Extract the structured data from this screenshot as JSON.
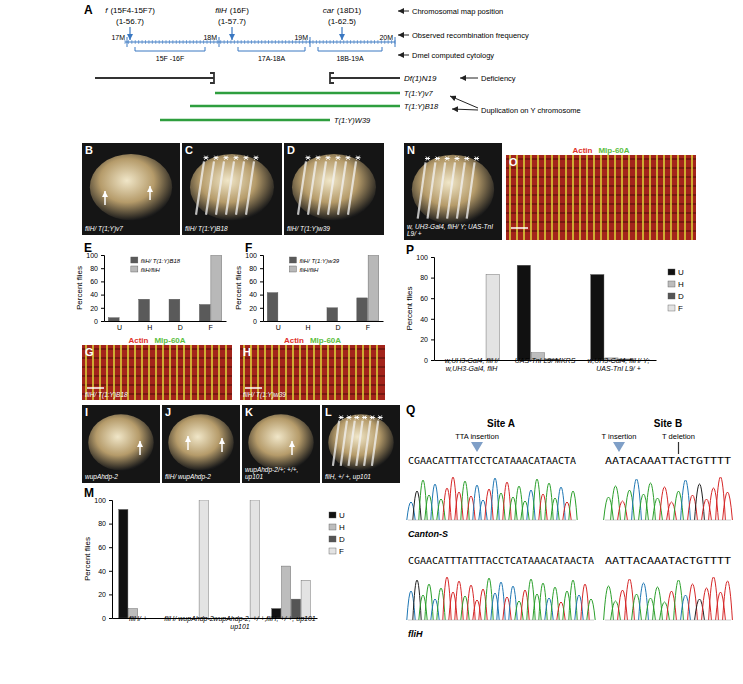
{
  "chart_data": [
    {
      "panel": "E",
      "type": "bar",
      "y_label": "Percent flies",
      "categories": [
        "U",
        "H",
        "D",
        "F"
      ],
      "series": [
        {
          "name": "fliH/ T(1:Y)B18",
          "color": "#5a5a5a",
          "values": [
            5,
            33,
            33,
            25
          ]
        },
        {
          "name": "fliH/fliH",
          "color": "#b8b8b8",
          "values": [
            0,
            0,
            0,
            100
          ]
        }
      ],
      "ylim": [
        0,
        100
      ],
      "yticks": [
        0,
        20,
        40,
        60,
        80,
        100
      ],
      "legend": "top"
    },
    {
      "panel": "F",
      "type": "bar",
      "y_label": "Percent flies",
      "categories": [
        "U",
        "H",
        "D",
        "F"
      ],
      "series": [
        {
          "name": "fliH/ T(1:Y)w39",
          "color": "#5a5a5a",
          "values": [
            43,
            0,
            20,
            35
          ]
        },
        {
          "name": "fliH/fliH",
          "color": "#b8b8b8",
          "values": [
            0,
            0,
            0,
            100
          ]
        }
      ],
      "ylim": [
        0,
        100
      ],
      "yticks": [
        0,
        20,
        40,
        60,
        80,
        100
      ],
      "legend": "top"
    },
    {
      "panel": "M",
      "type": "bar",
      "y_label": "Percent  flies",
      "categories": [
        "fliH/ +",
        "fliH/ wupAhdp-2",
        "wupAhdp-2, +/ +, up101",
        "fliH, +/ +, up101"
      ],
      "series": [
        {
          "name": "U",
          "color": "#111111",
          "values": [
            92,
            0,
            0,
            8
          ]
        },
        {
          "name": "H",
          "color": "#bdbdbd",
          "values": [
            8,
            0,
            0,
            44
          ]
        },
        {
          "name": "D",
          "color": "#555555",
          "values": [
            0,
            0,
            0,
            16
          ]
        },
        {
          "name": "F",
          "color": "#e3e3e3",
          "values": [
            0,
            100,
            100,
            32
          ]
        }
      ],
      "ylim": [
        0,
        100
      ],
      "yticks": [
        0,
        20,
        40,
        60,
        80,
        100
      ],
      "legend": "right"
    },
    {
      "panel": "P",
      "type": "bar",
      "y_label": "Percent flies",
      "categories": [
        "w,UH3-Gal4, fliH/ w,UH3-Gal4, fliH",
        "UAS-TnI L9/ MKRS",
        "w,UH3-Gal4, fliH/ Y; UAS-TnI L9/ +"
      ],
      "series": [
        {
          "name": "U",
          "color": "#111111",
          "values": [
            0,
            92,
            83
          ]
        },
        {
          "name": "H",
          "color": "#bdbdbd",
          "values": [
            0,
            7,
            2
          ]
        },
        {
          "name": "D",
          "color": "#555555",
          "values": [
            0,
            1,
            1
          ]
        },
        {
          "name": "F",
          "color": "#e3e3e3",
          "values": [
            83,
            0,
            0
          ]
        }
      ],
      "ylim": [
        0,
        100
      ],
      "yticks": [
        0,
        20,
        40,
        60,
        80,
        100
      ],
      "legend": "right"
    }
  ],
  "map": {
    "panel": "A",
    "loci": [
      {
        "name": "f",
        "cytology": "(15F4-15F7)",
        "recombination": "(1-56.7)"
      },
      {
        "name": "fliH",
        "cytology": "(16F)",
        "recombination": "(1-57.7)"
      },
      {
        "name": "car",
        "cytology": "(18D1)",
        "recombination": "(1-62.5)"
      }
    ],
    "scale_ticks": [
      "17M",
      "18M",
      "19M",
      "20M"
    ],
    "cytology_ranges": [
      "15F -16F",
      "17A-18A",
      "18B-19A"
    ],
    "row_labels": [
      "Chromosomal map position",
      "Observed recombination frequency",
      "Dmel computed cytology"
    ],
    "deficiency": {
      "name": "Df(1)N19",
      "label": "Deficiency"
    },
    "duplications": {
      "names": [
        "T(1:Y)v7",
        "T(1:Y)B18",
        "T(1:Y)W39"
      ],
      "label": "Duplication on Y chromosome"
    }
  },
  "fly_photos": [
    {
      "panel": "B",
      "caption": "fliH/ T(1;Y)v7"
    },
    {
      "panel": "C",
      "caption": "fliH/ T(1:Y)B18"
    },
    {
      "panel": "D",
      "caption": "fliH/ T(1:Y)w39"
    },
    {
      "panel": "N",
      "caption": "w, UH3-Gal4, fliH/ Y; UAS-TnI L9/ +"
    },
    {
      "panel": "I",
      "caption": "wupAhdp-2"
    },
    {
      "panel": "J",
      "caption": "fliH/ wupAhdp-2"
    },
    {
      "panel": "K",
      "caption": "wupAhdp-2/+; +/+, up101"
    },
    {
      "panel": "L",
      "caption": "fliH, +/ +, up101"
    }
  ],
  "muscle_images": {
    "stains": [
      {
        "name": "Actin",
        "color": "#e0302a"
      },
      {
        "name": "Mlp-60A",
        "color": "#5cc040"
      }
    ],
    "panels": [
      {
        "panel": "G",
        "caption": "fliH/ T(1:Y)B18"
      },
      {
        "panel": "H",
        "caption": "fliH/ T(1:Y)w39"
      },
      {
        "panel": "O"
      }
    ]
  },
  "sequencing": {
    "panel": "Q",
    "sites": [
      {
        "name": "Site A",
        "annotations": [
          "TTA insertion"
        ]
      },
      {
        "name": "Site B",
        "annotations": [
          "T insertion",
          "T deletion"
        ]
      }
    ],
    "rows": [
      {
        "strain": "Canton-S",
        "sequences": [
          "CGAACATTTATCCTCATAAACATAACTA",
          "AATACAAATTACTGTTTT"
        ]
      },
      {
        "strain": "fliH",
        "sequences": [
          "CGAACATTTATTTACCTCATAAACATAACTA",
          "AATTACAAATACTGTTTT"
        ]
      }
    ]
  }
}
